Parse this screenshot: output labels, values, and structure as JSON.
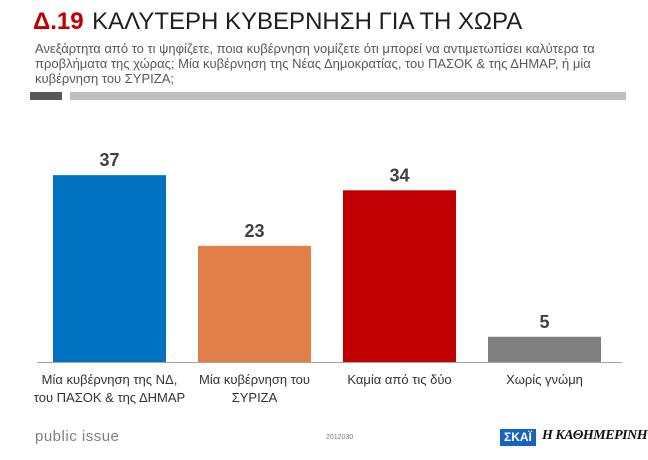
{
  "header": {
    "code": "Δ.19",
    "title": "ΚΑΛΥΤΕΡΗ ΚΥΒΕΡΝΗΣΗ ΓΙΑ ΤΗ ΧΩΡΑ",
    "question": "Ανεξάρτητα από το τι ψηφίζετε, ποια κυβέρνηση νομίζετε ότι μπορεί να αντιμετωπίσει καλύτερα τα προβλήματα της χώρας; Μία κυβέρνηση της Νέας Δημοκρατίας, του ΠΑΣΟΚ & της ΔΗΜΑΡ, ή μία κυβέρνηση του ΣΥΡΙΖΑ;"
  },
  "chart_data": {
    "type": "bar",
    "title": "ΚΑΛΥΤΕΡΗ ΚΥΒΕΡΝΗΣΗ ΓΙΑ ΤΗ ΧΩΡΑ",
    "categories": [
      [
        "Μία κυβέρνηση της ΝΔ,",
        "του ΠΑΣΟΚ & της ΔΗΜΑΡ"
      ],
      [
        "Μία κυβέρνηση του",
        "ΣΥΡΙΖΑ"
      ],
      [
        "Καμία από τις δύο"
      ],
      [
        "Χωρίς γνώμη"
      ]
    ],
    "values": [
      37,
      23,
      34,
      5
    ],
    "colors": [
      "#0070c0",
      "#e07f48",
      "#c00000",
      "#808080"
    ],
    "xlabel": "",
    "ylabel": "",
    "ylim": [
      0,
      40
    ],
    "grid": false
  },
  "footer": {
    "brand": "public issue",
    "code": "2012030",
    "logo_skai": "ΣΚΑΪ",
    "logo_kathimerini": "Η ΚΑΘΗΜΕΡΙΝΗ"
  }
}
